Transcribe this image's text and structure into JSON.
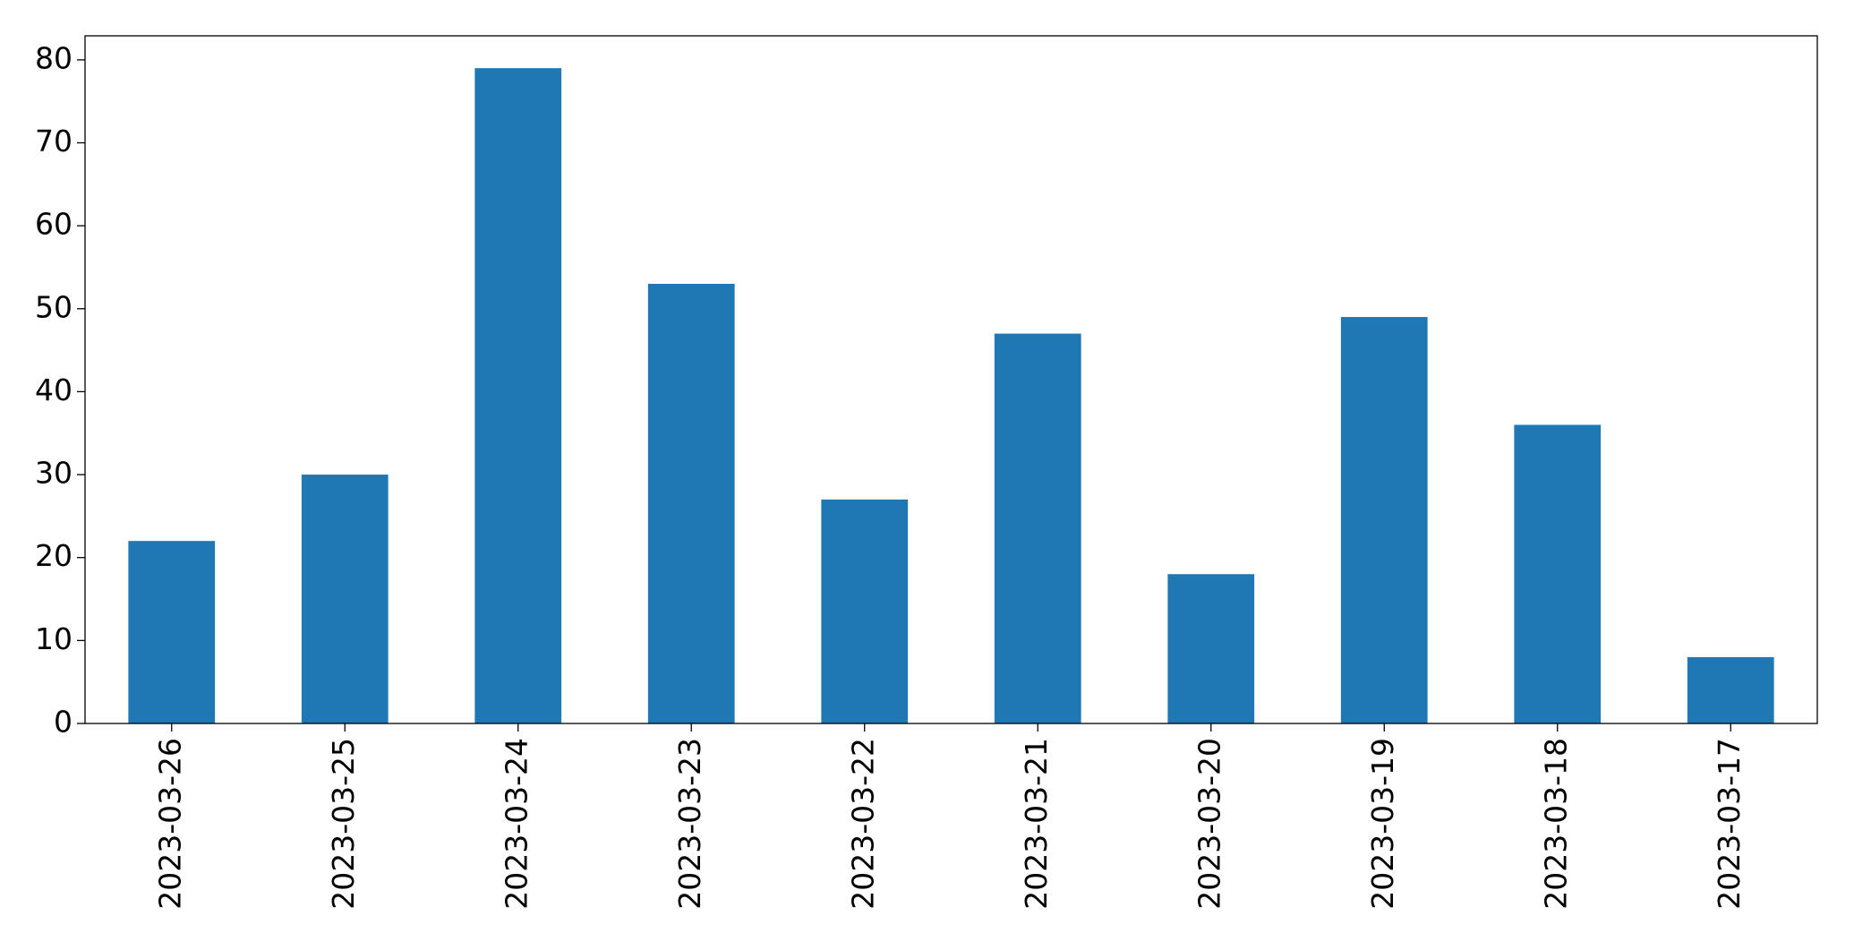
{
  "chart_data": {
    "type": "bar",
    "categories": [
      "2023-03-26",
      "2023-03-25",
      "2023-03-24",
      "2023-03-23",
      "2023-03-22",
      "2023-03-21",
      "2023-03-20",
      "2023-03-19",
      "2023-03-18",
      "2023-03-17"
    ],
    "values": [
      22,
      30,
      79,
      53,
      27,
      47,
      18,
      49,
      36,
      8
    ],
    "color": "#1f77b4",
    "ylim": [
      0,
      82.9
    ],
    "yticks": [
      0,
      10,
      20,
      30,
      40,
      50,
      60,
      70,
      80
    ],
    "grid": false
  }
}
